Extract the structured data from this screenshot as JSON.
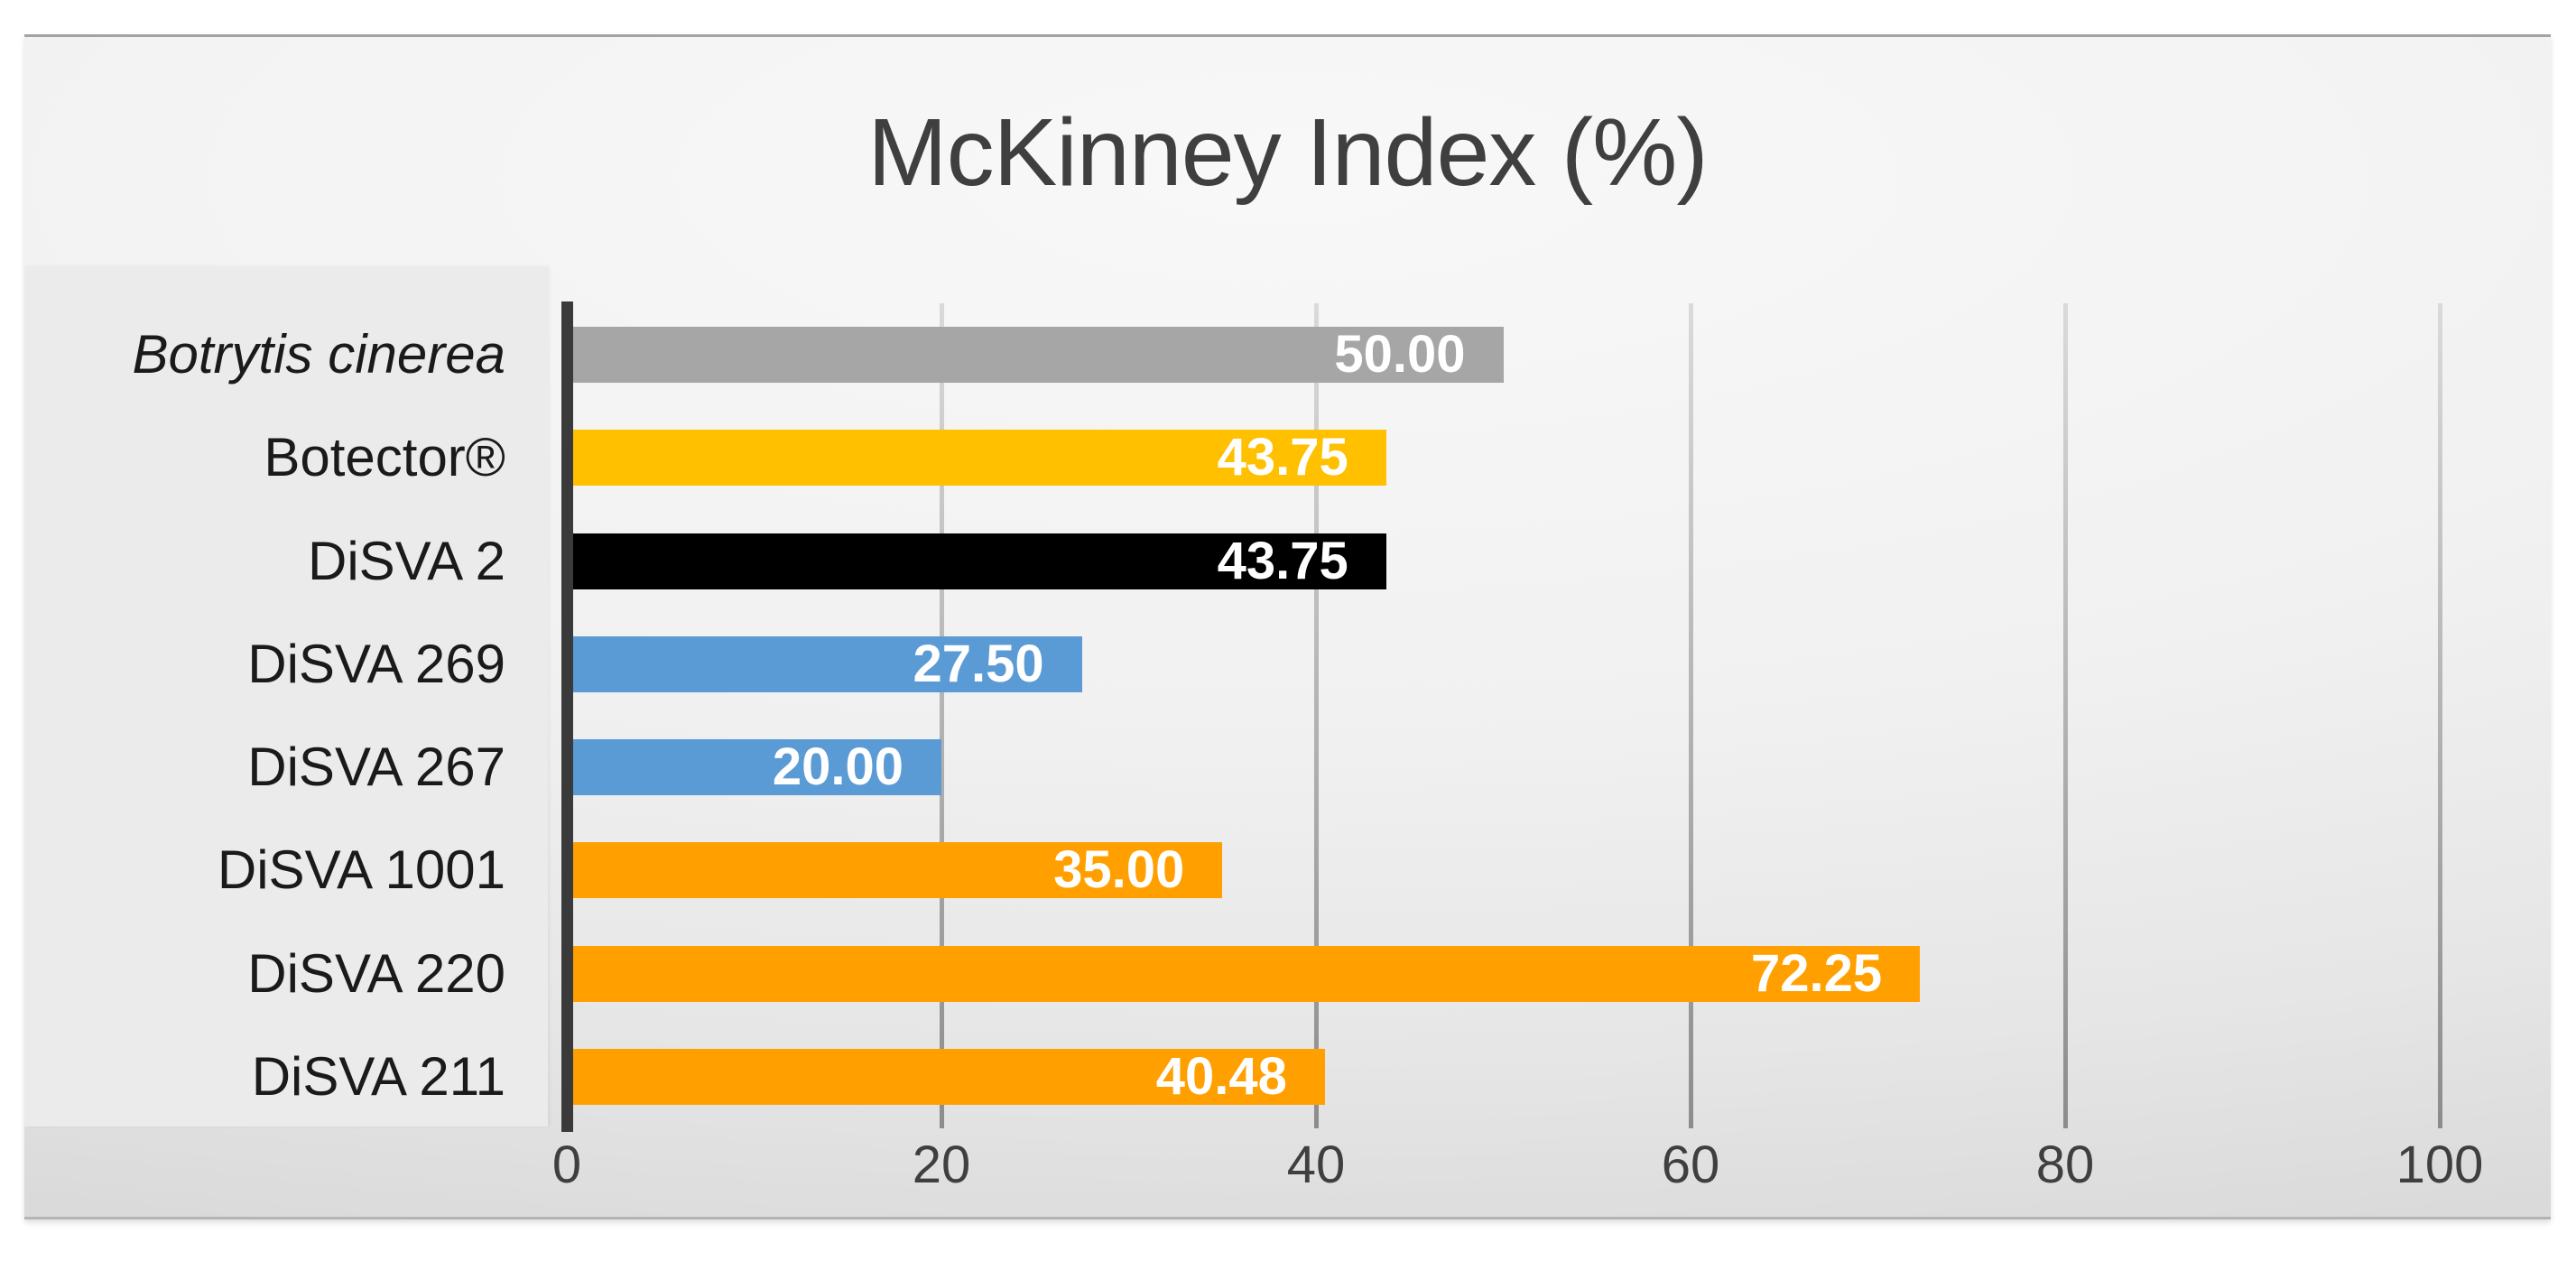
{
  "chart_data": {
    "type": "bar",
    "orientation": "horizontal",
    "title": "McKinney Index (%)",
    "title_color": "#3f3f3f",
    "categories": [
      "Botrytis cinerea",
      "Botector®",
      "DiSVA 2",
      "DiSVA 269",
      "DiSVA 267",
      "DiSVA 1001",
      "DiSVA 220",
      "DiSVA 211"
    ],
    "categories_italic": [
      true,
      false,
      false,
      false,
      false,
      false,
      false,
      false
    ],
    "values": [
      50.0,
      43.75,
      43.75,
      27.5,
      20.0,
      35.0,
      72.25,
      40.48
    ],
    "value_labels": [
      "50.00",
      "43.75",
      "43.75",
      "27.50",
      "20.00",
      "35.00",
      "72.25",
      "40.48"
    ],
    "bar_colors": [
      "#a6a6a6",
      "#ffc000",
      "#000000",
      "#5b9bd5",
      "#5b9bd5",
      "#ffa000",
      "#ffa000",
      "#ffa000"
    ],
    "value_label_color": "#ffffff",
    "xlabel": "",
    "ylabel": "",
    "xlim": [
      0,
      100
    ],
    "x_ticks": [
      0,
      20,
      40,
      60,
      80,
      100
    ],
    "x_tick_labels": [
      "0",
      "20",
      "40",
      "60",
      "80",
      "100"
    ],
    "tick_label_color": "#3f3f3f",
    "axis_color": "#3a3a3a",
    "grid": true,
    "legend": false
  }
}
